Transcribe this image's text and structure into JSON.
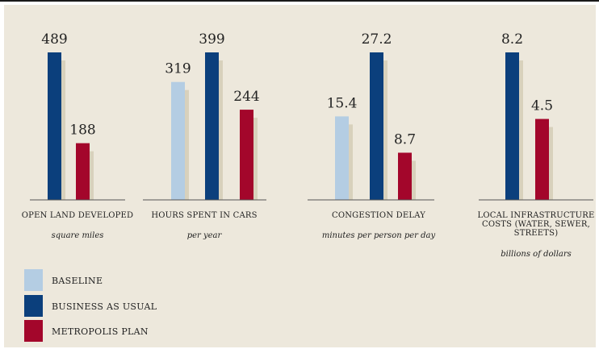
{
  "chart_data": {
    "type": "bar",
    "series": [
      {
        "name": "BASELINE",
        "color": "#b4cde3"
      },
      {
        "name": "BUSINESS AS USUAL",
        "color": "#0b3f7c"
      },
      {
        "name": "METROPOLIS PLAN",
        "color": "#a3062b"
      }
    ],
    "shadow_color": "#d8d1bc",
    "panels": [
      {
        "label_lines": [
          "OPEN LAND DEVELOPED"
        ],
        "unit": "square miles",
        "bars": [
          {
            "series": 1,
            "value": 489,
            "label": "489"
          },
          {
            "series": 2,
            "value": 188,
            "label": "188"
          }
        ]
      },
      {
        "label_lines": [
          "HOURS SPENT IN CARS"
        ],
        "unit": "per year",
        "bars": [
          {
            "series": 0,
            "value": 319,
            "label": "319"
          },
          {
            "series": 1,
            "value": 399,
            "label": "399"
          },
          {
            "series": 2,
            "value": 244,
            "label": "244"
          }
        ]
      },
      {
        "label_lines": [
          "CONGESTION DELAY"
        ],
        "unit": "minutes per person per day",
        "bars": [
          {
            "series": 0,
            "value": 15.4,
            "label": "15.4"
          },
          {
            "series": 1,
            "value": 27.2,
            "label": "27.2"
          },
          {
            "series": 2,
            "value": 8.7,
            "label": "8.7"
          }
        ]
      },
      {
        "label_lines": [
          "LOCAL INFRASTRUCTURE",
          "COSTS (WATER, SEWER,",
          "STREETS)"
        ],
        "unit": "billions of dollars",
        "bars": [
          {
            "series": 1,
            "value": 8.2,
            "label": "8.2"
          },
          {
            "series": 2,
            "value": 4.5,
            "label": "4.5"
          }
        ]
      }
    ]
  }
}
